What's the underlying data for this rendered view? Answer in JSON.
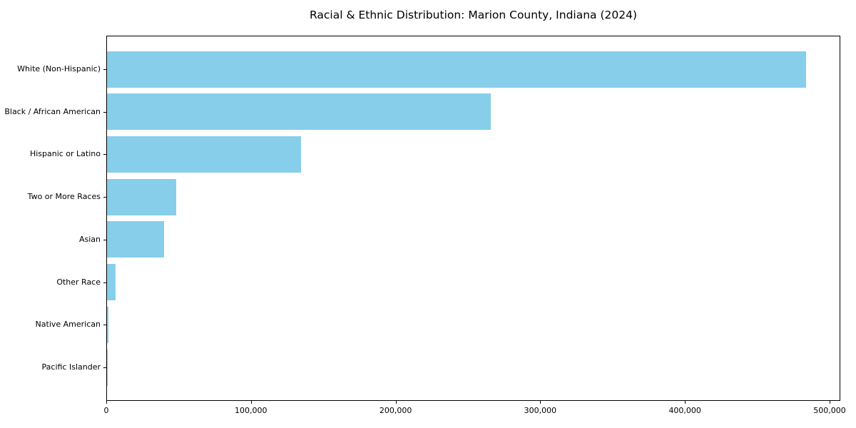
{
  "chart_data": {
    "type": "bar",
    "orientation": "horizontal",
    "title": "Racial & Ethnic Distribution: Marion County, Indiana (2024)",
    "categories": [
      "White (Non-Hispanic)",
      "Black / African American",
      "Hispanic or Latino",
      "Two or More Races",
      "Asian",
      "Other Race",
      "Native American",
      "Pacific Islander"
    ],
    "values": [
      483000,
      265500,
      134000,
      48000,
      39500,
      6000,
      1000,
      300
    ],
    "xlabel": "",
    "ylabel": "",
    "xlim": [
      0,
      507400
    ],
    "x_ticks": [
      0,
      100000,
      200000,
      300000,
      400000,
      500000
    ],
    "x_tick_labels": [
      "0",
      "100,000",
      "200,000",
      "300,000",
      "400,000",
      "500,000"
    ],
    "bar_color": "#87CEEB",
    "axis_color": "#000000",
    "text_color": "#000000",
    "background_color": "#ffffff",
    "grid": false,
    "legend_position": "none"
  }
}
